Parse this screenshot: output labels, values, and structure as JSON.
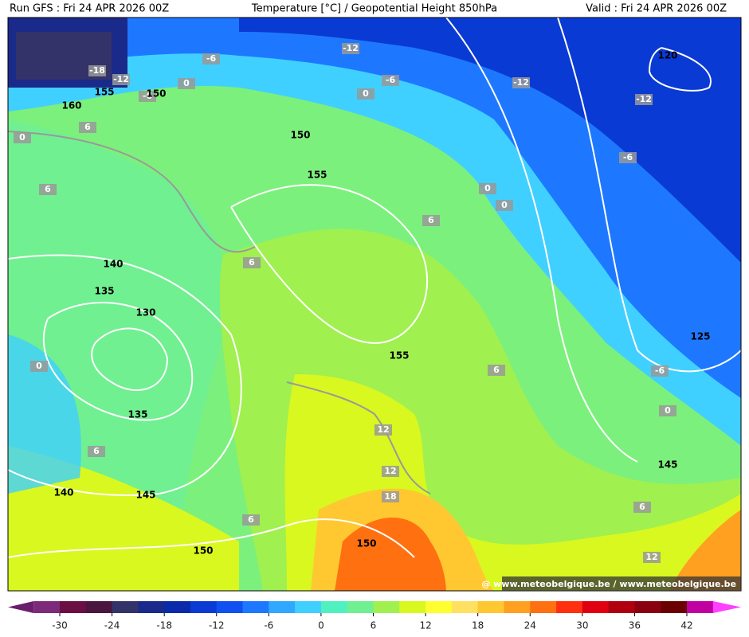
{
  "header": {
    "run": "Run GFS : Fri 24 APR 2026 00Z",
    "title": "Temperature [°C] / Geopotential Height 850hPa",
    "valid": "Valid : Fri 24 APR 2026 00Z"
  },
  "map": {
    "isotherm_labels": [
      -18,
      -12,
      -6,
      0,
      -6,
      -12,
      -6,
      0,
      -12,
      -12,
      -6,
      0,
      0,
      6,
      6,
      6,
      -6,
      0,
      12,
      12,
      18,
      6,
      6,
      6,
      12,
      0,
      6,
      0,
      6
    ],
    "height_labels": [
      160,
      155,
      150,
      150,
      155,
      140,
      135,
      130,
      155,
      135,
      140,
      145,
      150,
      150,
      145,
      125,
      120
    ],
    "watermark": "@ www.meteobelgique.be / www.meteobelgique.be"
  },
  "colorbar": {
    "ticks": [
      -30,
      -24,
      -18,
      -12,
      -6,
      0,
      6,
      12,
      18,
      24,
      30,
      36,
      42
    ],
    "colors": [
      "#6a1f6a",
      "#7d2a7d",
      "#6b0e44",
      "#4a1640",
      "#33336a",
      "#1a2a8a",
      "#0a2aaa",
      "#0a3ad4",
      "#1050f0",
      "#1e78ff",
      "#30a8ff",
      "#40d0ff",
      "#50f0c0",
      "#70f090",
      "#a0f050",
      "#d8f820",
      "#ffff30",
      "#ffe060",
      "#ffc830",
      "#ffa020",
      "#ff7010",
      "#ff3010",
      "#e00010",
      "#b00010",
      "#8a0010",
      "#6a0000",
      "#c000a0",
      "#ff40ff"
    ]
  }
}
